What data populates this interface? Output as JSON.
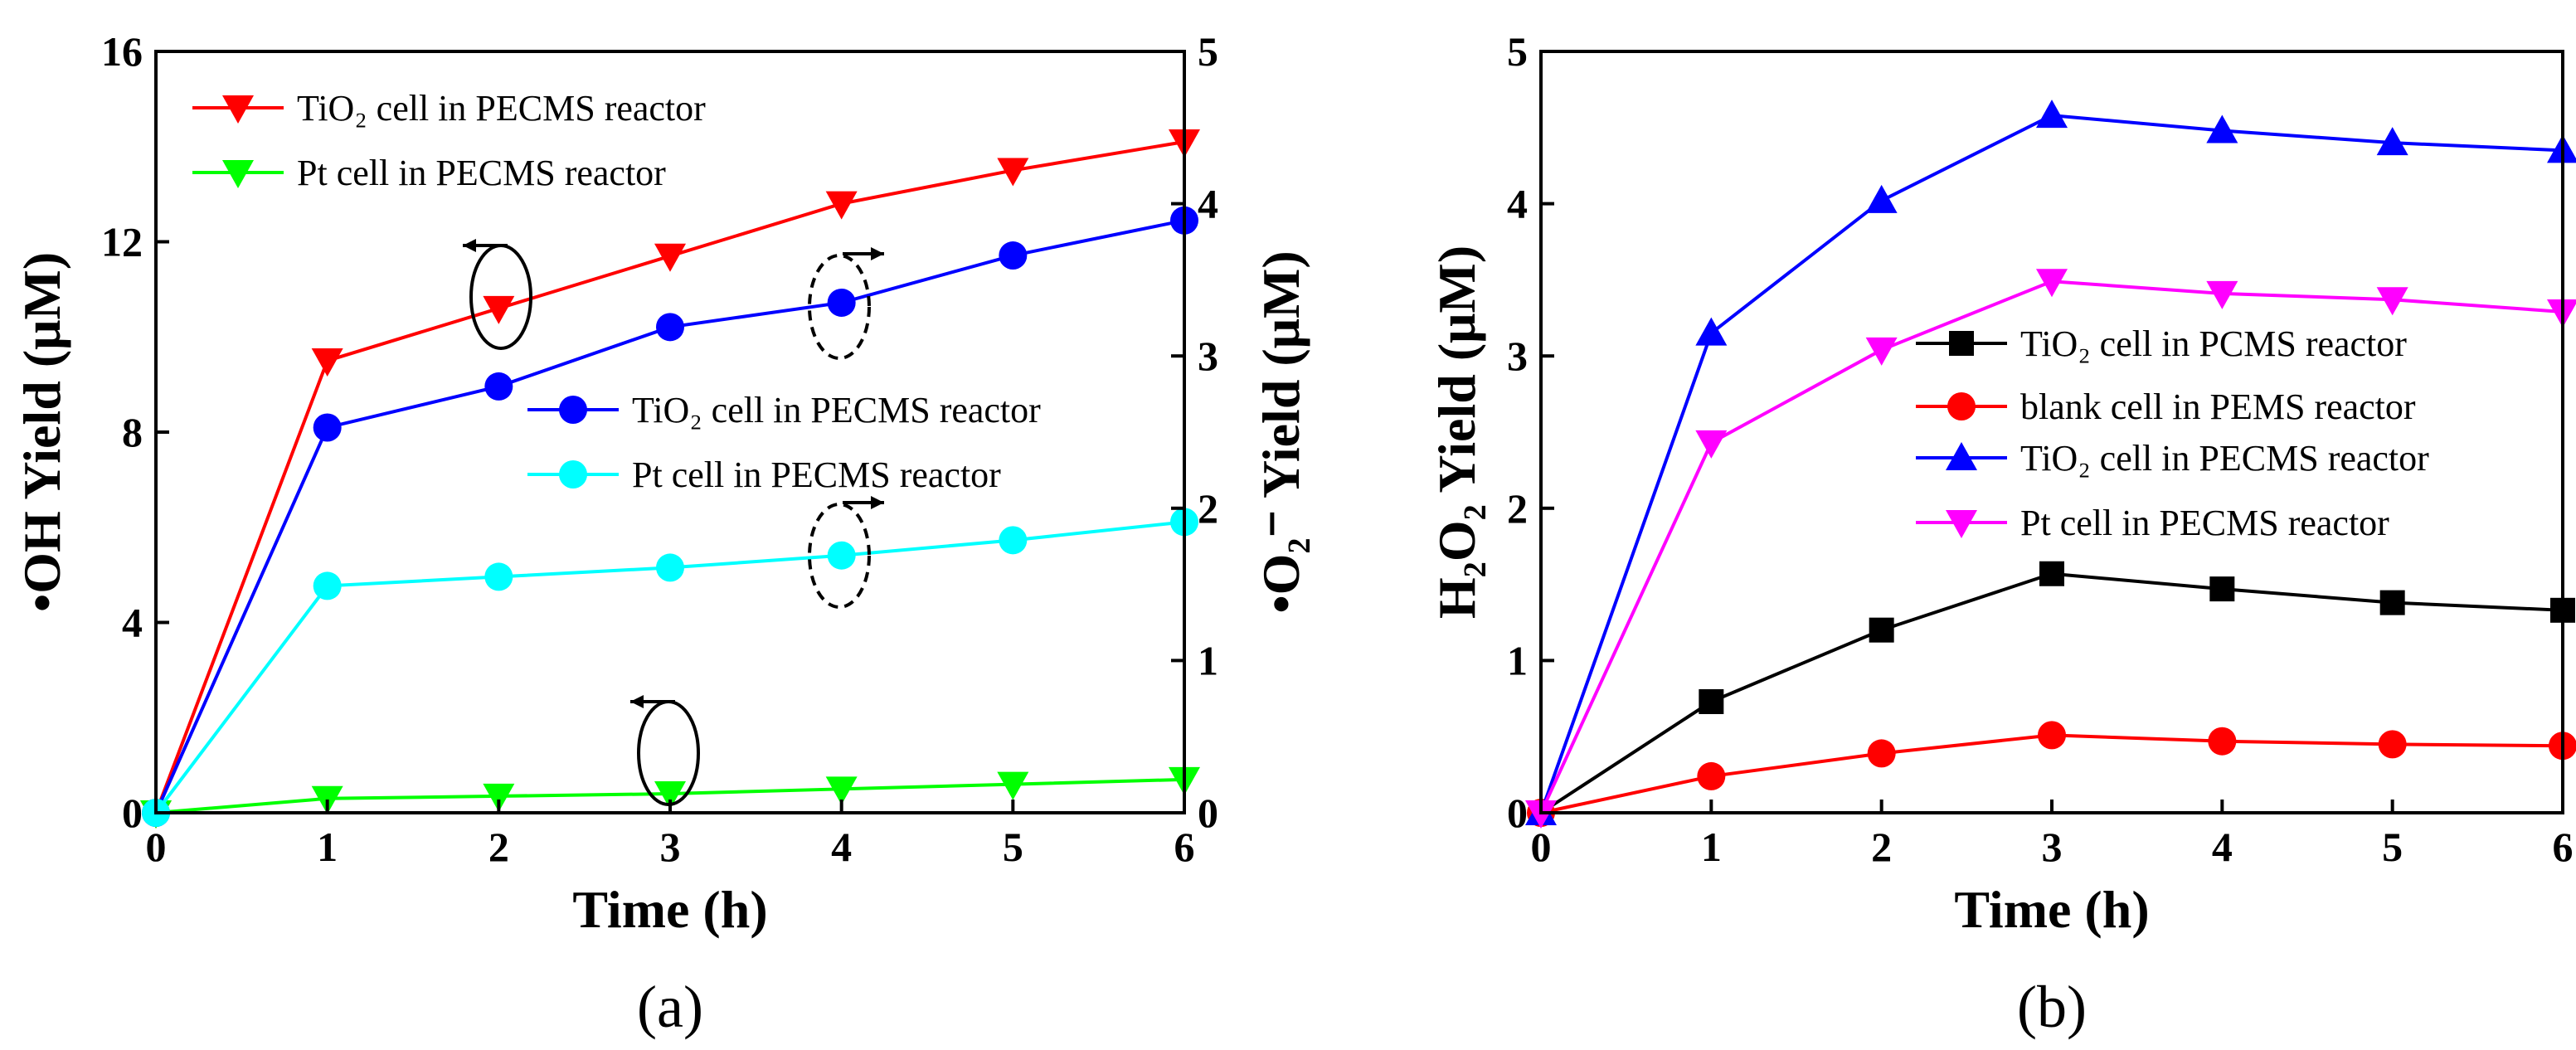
{
  "chart_data": [
    {
      "id": "a",
      "type": "line",
      "panel_label": "(a)",
      "xlabel": "Time (h)",
      "ylabel_left": "•OH Yield (μM)",
      "ylabel_right": "•O₂⁻ Yield (μM)",
      "xlim": [
        0,
        6
      ],
      "ylim_left": [
        0,
        16
      ],
      "ylim_right": [
        0,
        5
      ],
      "x_ticks": [
        "0",
        "1",
        "2",
        "3",
        "4",
        "5",
        "6"
      ],
      "y_ticks_left": [
        "0",
        "4",
        "8",
        "12",
        "16"
      ],
      "y_ticks_right": [
        "0",
        "1",
        "2",
        "3",
        "4",
        "5"
      ],
      "x": [
        0,
        1,
        2,
        3,
        4,
        5,
        6
      ],
      "series": [
        {
          "name": "TiO₂ cell in PECMS reactor",
          "axis": "left",
          "marker": "triangle-down",
          "color": "#ff0000",
          "values": [
            0,
            9.5,
            10.6,
            11.7,
            12.8,
            13.5,
            14.1
          ]
        },
        {
          "name": "Pt cell in PECMS reactor",
          "axis": "left",
          "marker": "triangle-down",
          "color": "#00ff00",
          "values": [
            0,
            0.3,
            0.35,
            0.4,
            0.5,
            0.6,
            0.7
          ]
        },
        {
          "name": "TiO₂ cell in PECMS reactor",
          "axis": "right",
          "marker": "circle",
          "color": "#0000ff",
          "values": [
            0,
            2.53,
            2.8,
            3.19,
            3.35,
            3.66,
            3.89
          ]
        },
        {
          "name": "Pt cell in PECMS reactor",
          "axis": "right",
          "marker": "circle",
          "color": "#00ffff",
          "values": [
            0,
            1.49,
            1.55,
            1.61,
            1.69,
            1.79,
            1.91
          ]
        }
      ],
      "grid": false
    },
    {
      "id": "b",
      "type": "line",
      "panel_label": "(b)",
      "xlabel": "Time (h)",
      "ylabel": "H₂O₂ Yield (μM)",
      "xlim": [
        0,
        6
      ],
      "ylim": [
        0,
        5
      ],
      "x_ticks": [
        "0",
        "1",
        "2",
        "3",
        "4",
        "5",
        "6"
      ],
      "y_ticks": [
        "0",
        "1",
        "2",
        "3",
        "4",
        "5"
      ],
      "x": [
        0,
        1,
        2,
        3,
        4,
        5,
        6
      ],
      "series": [
        {
          "name": "TiO₂ cell in PCMS reactor",
          "marker": "square",
          "color": "#000000",
          "values": [
            0,
            0.73,
            1.2,
            1.57,
            1.47,
            1.38,
            1.33
          ]
        },
        {
          "name": "blank cell in PEMS reactor",
          "marker": "circle",
          "color": "#ff0000",
          "values": [
            0,
            0.24,
            0.39,
            0.51,
            0.47,
            0.45,
            0.44
          ]
        },
        {
          "name": "TiO₂ cell in PECMS reactor",
          "marker": "triangle-up",
          "color": "#0000ff",
          "values": [
            0,
            3.15,
            4.02,
            4.58,
            4.48,
            4.4,
            4.35
          ]
        },
        {
          "name": "Pt cell in PECMS reactor",
          "marker": "triangle-down",
          "color": "#ff00ff",
          "values": [
            0,
            2.43,
            3.04,
            3.49,
            3.41,
            3.37,
            3.29
          ]
        }
      ],
      "grid": false
    }
  ]
}
